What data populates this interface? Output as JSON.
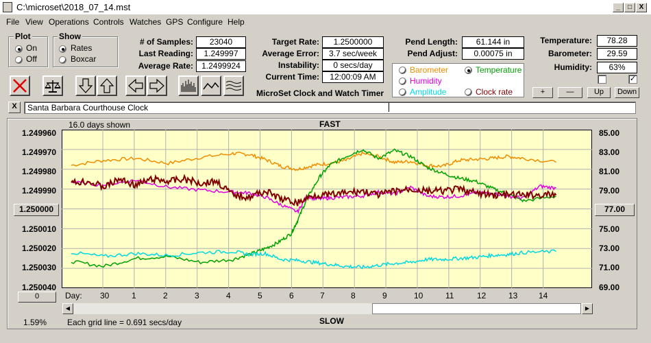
{
  "window": {
    "title": "C:\\microset\\2018_07_14.mst",
    "min": "_",
    "max": "□",
    "close": "X"
  },
  "menu": [
    "File",
    "View",
    "Operations",
    "Controls",
    "Watches",
    "GPS",
    "Configure",
    "Help"
  ],
  "plot_group": {
    "title": "Plot",
    "options": [
      "On",
      "Off"
    ],
    "selected": "On"
  },
  "show_group": {
    "title": "Show",
    "options": [
      "Rates",
      "Boxcar"
    ],
    "selected": "Rates"
  },
  "stats": {
    "samples_label": "# of Samples:",
    "samples": "23040",
    "last_reading_label": "Last Reading:",
    "last_reading": "1.249997",
    "avg_rate_label": "Average Rate:",
    "avg_rate": "1.2499924"
  },
  "rates": {
    "target_label": "Target Rate:",
    "target": "1.2500000",
    "avg_error_label": "Average Error:",
    "avg_error": "3.7 sec/week",
    "instability_label": "Instability:",
    "instability": "0 secs/day",
    "current_time_label": "Current Time:",
    "current_time": "12:00:09 AM",
    "app_name": "MicroSet Clock and Watch Timer"
  },
  "pend": {
    "length_label": "Pend Length:",
    "length": "61.144 in",
    "adjust_label": "Pend Adjust:",
    "adjust": "0.00075 in"
  },
  "env": {
    "temp_label": "Temperature:",
    "temp": "78.28",
    "baro_label": "Barometer:",
    "baro": "29.59",
    "hum_label": "Humidity:",
    "hum": "63%"
  },
  "overlay": {
    "options": [
      {
        "label": "Barometer",
        "color": "#f08c00"
      },
      {
        "label": "Temperature",
        "color": "#00a000"
      },
      {
        "label": "Humidity",
        "color": "#e000e0"
      },
      {
        "label": "Amplitude",
        "color": "#00d8e0"
      },
      {
        "label": "Clock rate",
        "color": "#800000"
      }
    ],
    "selected": "Temperature"
  },
  "scale_buttons": [
    "+",
    "—",
    "Up",
    "Down"
  ],
  "clock_close": "X",
  "clock_name": "Santa Barbara Courthouse Clock",
  "chart_data": {
    "type": "line",
    "top_label": "FAST",
    "bottom_label": "SLOW",
    "days_shown": "16.0 days shown",
    "grid_note": "Each grid line = 0.691 secs/day",
    "left_axis": [
      "1.249960",
      "1.249970",
      "1.249980",
      "1.249990",
      "1.250000",
      "1.250010",
      "1.250020",
      "1.250030",
      "1.250040"
    ],
    "left_center_button": "1.250000",
    "right_axis": [
      "85.00",
      "83.00",
      "81.00",
      "79.00",
      "77.00",
      "75.00",
      "73.00",
      "71.00",
      "69.00"
    ],
    "right_center_button": "77.00",
    "bottom_left_button": "0",
    "day_label": "Day:",
    "days": [
      "30",
      "1",
      "2",
      "3",
      "4",
      "5",
      "6",
      "7",
      "8",
      "9",
      "10",
      "11",
      "12",
      "13",
      "14"
    ],
    "percent": "1.59%",
    "plot_bg": "#ffffc8",
    "series": [
      {
        "name": "Barometer",
        "color": "#f08c00",
        "width": 1.5,
        "x": [
          0,
          1,
          2,
          3,
          4,
          5,
          5.5,
          6,
          6.5,
          7,
          7.5,
          8,
          8.5,
          9,
          9.5,
          10,
          10.5,
          11,
          11.5,
          12,
          12.5,
          13,
          13.5,
          14,
          15
        ],
        "y": [
          81.4,
          81.9,
          82.1,
          81.6,
          82.2,
          82.6,
          82.5,
          82.0,
          81.3,
          81.0,
          81.4,
          81.6,
          81.9,
          82.6,
          82.3,
          81.7,
          81.8,
          81.4,
          81.3,
          81.9,
          82.0,
          82.1,
          82.3,
          82.1,
          81.7
        ]
      },
      {
        "name": "Temperature",
        "color": "#00a000",
        "width": 1.5,
        "x": [
          0,
          1,
          2,
          3,
          4,
          5,
          5.6,
          6,
          6.4,
          6.8,
          7,
          7.3,
          7.7,
          8,
          8.5,
          9,
          9.5,
          10,
          10.5,
          11,
          11.5,
          12,
          12.5,
          13,
          13.5,
          14,
          15
        ],
        "y": [
          71.7,
          71.2,
          72.0,
          72.2,
          71.6,
          71.9,
          72.5,
          73.0,
          73.6,
          74.5,
          75.8,
          78.1,
          80.3,
          81.4,
          82.3,
          83.0,
          82.1,
          82.9,
          82.3,
          81.2,
          80.6,
          80.1,
          79.8,
          79.1,
          78.5,
          77.8,
          78.3
        ]
      },
      {
        "name": "Humidity",
        "color": "#e000e0",
        "width": 1.5,
        "x": [
          0,
          1,
          2,
          3,
          4,
          5,
          5.5,
          6,
          6.5,
          7,
          7.3,
          7.6,
          8,
          8.5,
          9,
          9.5,
          10,
          10.5,
          11,
          11.5,
          12,
          12.5,
          13,
          13.5,
          14,
          14.5,
          15
        ],
        "y": [
          79.7,
          79.4,
          79.9,
          79.2,
          78.9,
          78.7,
          78.6,
          78.2,
          77.4,
          76.7,
          78.3,
          78.0,
          78.1,
          78.2,
          78.3,
          78.7,
          78.5,
          79.2,
          78.3,
          78.2,
          78.3,
          78.6,
          78.6,
          78.3,
          78.1,
          79.3,
          79.1
        ]
      },
      {
        "name": "Amplitude",
        "color": "#00d8e0",
        "width": 1.5,
        "x": [
          0,
          1,
          2,
          3,
          4,
          5,
          5.5,
          6,
          6.5,
          7,
          7.5,
          8,
          8.5,
          9,
          9.5,
          10,
          10.5,
          11,
          11.5,
          12,
          12.5,
          13,
          13.5,
          14,
          15
        ],
        "y": [
          72.6,
          72.2,
          72.5,
          72.3,
          72.6,
          72.7,
          72.4,
          72.5,
          71.9,
          71.8,
          71.6,
          71.4,
          71.2,
          71.1,
          71.3,
          71.5,
          71.6,
          71.9,
          71.9,
          72.0,
          72.1,
          72.3,
          72.4,
          72.6,
          72.7
        ]
      },
      {
        "name": "Clock rate",
        "color": "#800000",
        "width": 2,
        "x": [
          0,
          0.5,
          1,
          1.5,
          2,
          2.5,
          3,
          3.5,
          4,
          4.5,
          5,
          5.5,
          6,
          6.5,
          7,
          7.5,
          8,
          8.5,
          9,
          9.5,
          10,
          10.5,
          11,
          11.5,
          12,
          12.5,
          13,
          13.5,
          14,
          14.5,
          15
        ],
        "y": [
          1.249987,
          1.249986,
          1.249989,
          1.249985,
          1.249988,
          1.249985,
          1.249986,
          1.249985,
          1.249987,
          1.249986,
          1.249993,
          1.249994,
          1.249991,
          1.249995,
          1.249997,
          1.249993,
          1.249993,
          1.249992,
          1.249991,
          1.249993,
          1.249991,
          1.24999,
          1.249991,
          1.249991,
          1.24999,
          1.249992,
          1.249993,
          1.249993,
          1.249993,
          1.249993,
          1.249993
        ]
      }
    ]
  }
}
